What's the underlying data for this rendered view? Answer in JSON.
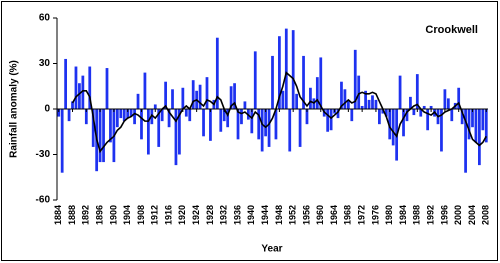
{
  "chart_data": {
    "type": "bar",
    "annotation": "Crookwell",
    "x_label": "Year",
    "y_label": "Rainfall anomaly (%)",
    "x": [
      1884,
      1885,
      1886,
      1887,
      1888,
      1889,
      1890,
      1891,
      1892,
      1893,
      1894,
      1895,
      1896,
      1897,
      1898,
      1899,
      1900,
      1901,
      1902,
      1903,
      1904,
      1905,
      1906,
      1907,
      1908,
      1909,
      1910,
      1911,
      1912,
      1913,
      1914,
      1915,
      1916,
      1917,
      1918,
      1919,
      1920,
      1921,
      1922,
      1923,
      1924,
      1925,
      1926,
      1927,
      1928,
      1929,
      1930,
      1931,
      1932,
      1933,
      1934,
      1935,
      1936,
      1937,
      1938,
      1939,
      1940,
      1941,
      1942,
      1943,
      1944,
      1945,
      1946,
      1947,
      1948,
      1949,
      1950,
      1951,
      1952,
      1953,
      1954,
      1955,
      1956,
      1957,
      1958,
      1959,
      1960,
      1961,
      1962,
      1963,
      1964,
      1965,
      1966,
      1967,
      1968,
      1969,
      1970,
      1971,
      1972,
      1973,
      1974,
      1975,
      1976,
      1977,
      1978,
      1979,
      1980,
      1981,
      1982,
      1983,
      1984,
      1985,
      1986,
      1987,
      1988,
      1989,
      1990,
      1991,
      1992,
      1993,
      1994,
      1995,
      1996,
      1997,
      1998,
      1999,
      2000,
      2001,
      2002,
      2003,
      2004,
      2005,
      2006,
      2007,
      2008
    ],
    "series": [
      {
        "type": "bar",
        "color": "#1e32f0",
        "values": [
          -5,
          -42,
          33,
          -8,
          5,
          28,
          17,
          22,
          -10,
          28,
          -25,
          -41,
          -35,
          -35,
          27,
          -22,
          -35,
          -12,
          -6,
          -8,
          -6,
          -5,
          -10,
          10,
          -20,
          24,
          -30,
          -10,
          3,
          -25,
          -8,
          18,
          -12,
          13,
          -37,
          -30,
          14,
          -5,
          -8,
          19,
          12,
          16,
          -18,
          21,
          -21,
          6,
          47,
          -15,
          -8,
          -12,
          15,
          17,
          -20,
          -10,
          5,
          -7,
          -16,
          38,
          -20,
          -28,
          -18,
          -25,
          35,
          -20,
          48,
          12,
          53,
          -28,
          52,
          10,
          -25,
          35,
          -10,
          14,
          7,
          21,
          34,
          -5,
          -15,
          -14,
          -3,
          -6,
          18,
          13,
          6,
          -8,
          39,
          22,
          2,
          12,
          6,
          9,
          6,
          -10,
          -3,
          -5,
          -20,
          -24,
          -34,
          22,
          -18,
          -8,
          8,
          -4,
          23,
          -5,
          2,
          -14,
          2,
          -5,
          -10,
          -28,
          13,
          7,
          -8,
          4,
          14,
          -10,
          -42,
          -20,
          -12,
          -22,
          -37,
          -14,
          -22
        ]
      },
      {
        "type": "line",
        "color": "#000000",
        "values": [
          null,
          null,
          null,
          null,
          4,
          8,
          10,
          12,
          12,
          8,
          -5,
          -20,
          -28,
          -25,
          -22,
          -20,
          -18,
          -14,
          -12,
          -8,
          -6,
          -5,
          -3,
          -4,
          -6,
          -8,
          -8,
          -4,
          -6,
          -3,
          0,
          2,
          -2,
          -5,
          -8,
          -4,
          0,
          2,
          0,
          5,
          6,
          4,
          2,
          6,
          5,
          3,
          8,
          6,
          0,
          -4,
          2,
          4,
          -2,
          -3,
          -2,
          -4,
          -6,
          -2,
          -4,
          -10,
          -12,
          -10,
          -6,
          0,
          8,
          15,
          24,
          22,
          20,
          15,
          8,
          5,
          2,
          5,
          4,
          6,
          2,
          -2,
          -4,
          -6,
          -4,
          -2,
          2,
          4,
          6,
          4,
          5,
          10,
          11,
          10,
          10,
          11,
          10,
          5,
          0,
          -5,
          -12,
          -15,
          -18,
          -10,
          -6,
          -2,
          0,
          2,
          3,
          0,
          -2,
          -3,
          -4,
          -2,
          -5,
          -4,
          -2,
          -1,
          0,
          2,
          4,
          -2,
          -8,
          -14,
          -20,
          -22,
          -24,
          -22,
          -18
        ]
      }
    ],
    "xlim": [
      1883.5,
      2008.5
    ],
    "xticks": [
      1884,
      1888,
      1892,
      1896,
      1900,
      1904,
      1908,
      1912,
      1916,
      1920,
      1924,
      1928,
      1932,
      1936,
      1940,
      1944,
      1948,
      1952,
      1956,
      1960,
      1964,
      1968,
      1972,
      1976,
      1980,
      1984,
      1988,
      1992,
      1996,
      2000,
      2004,
      2008
    ],
    "ylim": [
      -60,
      60
    ],
    "yticks": [
      -60,
      -30,
      0,
      30,
      60
    ],
    "grid": false
  }
}
